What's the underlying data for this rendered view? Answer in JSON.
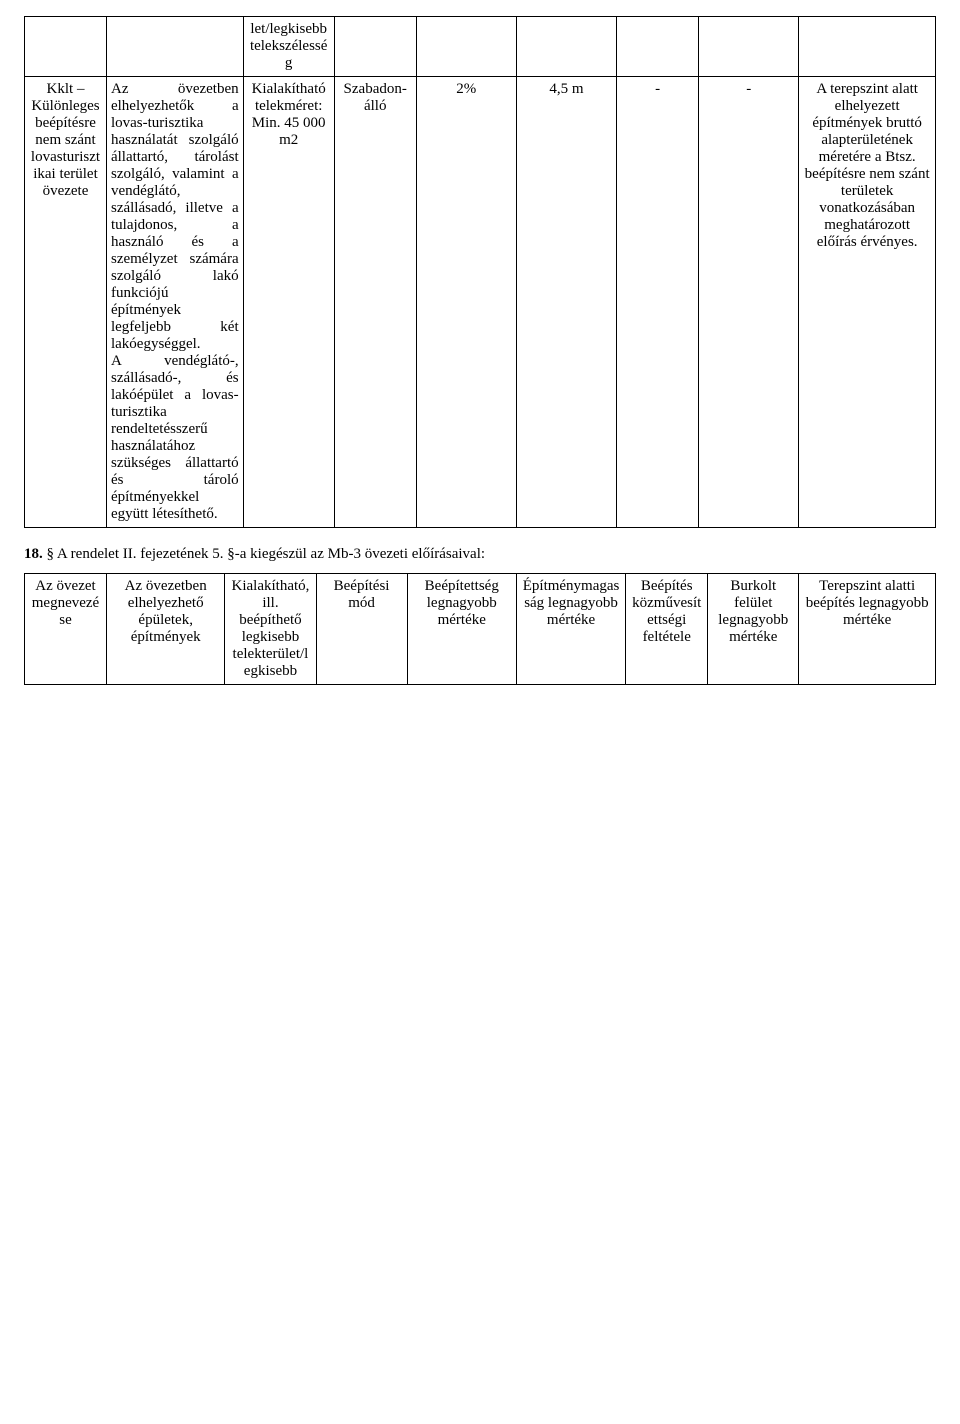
{
  "table1": {
    "colWidths": [
      "9%",
      "15%",
      "10%",
      "9%",
      "11%",
      "11%",
      "9%",
      "11%",
      "15%"
    ],
    "row0": {
      "c0": "",
      "c1": "",
      "c2": "let/legkisebb telekszélesség",
      "c3": "",
      "c4": "",
      "c5": "",
      "c6": "",
      "c7": "",
      "c8": ""
    },
    "row1": {
      "c0": "Kklt – Különleges beépítésre nem szánt lovasturisztikai terület övezete",
      "c1": "Az övezetben elhelyezhetők a lovas-turisztika használatát szolgáló állattartó, tárolást szolgáló, valamint a vendéglátó, szállásadó, illetve a tulajdonos, a használó és a személyzet számára szolgáló lakó funkciójú építmények legfeljebb két lakóegységgel.\nA vendéglátó-, szállásadó-, és lakóépület a lovas-turisztika rendeltetésszerű használatához szükséges állattartó és tároló építményekkel együtt létesíthető.",
      "c2": "Kialakítható telekméret:\nMin. 45 000 m2",
      "c3": "Szabadon-álló",
      "c4": "2%",
      "c5": "4,5 m",
      "c6": "-",
      "c7": "-",
      "c8": "A terepszint alatt elhelyezett építmények bruttó alapterületének méretére a Btsz. beépítésre nem szánt területek vonatkozásában meghatározott előírás érvényes."
    }
  },
  "section": {
    "num": "18.",
    "text": "§ A rendelet II. fejezetének 5. §-a kiegészül az Mb-3 övezeti előírásaival:"
  },
  "table2": {
    "colWidths": [
      "9%",
      "13%",
      "10%",
      "10%",
      "12%",
      "12%",
      "9%",
      "10%",
      "15%"
    ],
    "headers": {
      "c0": "Az övezet megnevezése",
      "c1": "Az övezetben elhelyezhető épületek, építmények",
      "c2": "Kialakítható, ill. beépíthető legkisebb telekterület/legkisebb",
      "c3": "Beépítési mód",
      "c4": "Beépítettség legnagyobb mértéke",
      "c5": "Építménymagasság legnagyobb mértéke",
      "c6": "Beépítés közművesítettségi feltétele",
      "c7": "Burkolt felület legnagyobb mértéke",
      "c8": "Terepszint alatti beépítés legnagyobb mértéke"
    }
  }
}
